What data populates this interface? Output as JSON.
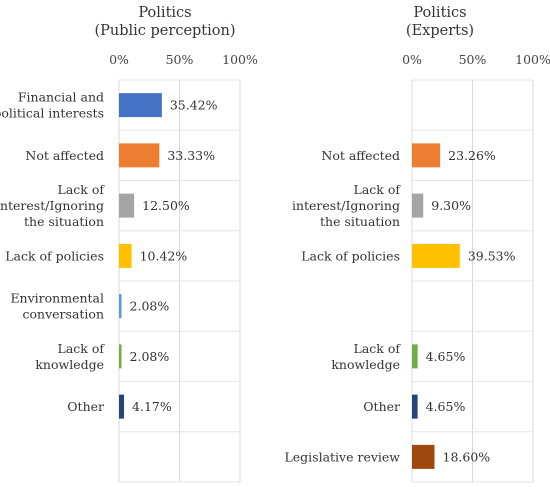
{
  "chart_data": [
    {
      "type": "bar",
      "orientation": "horizontal",
      "title": [
        "Politics",
        "(Public perception)"
      ],
      "xticks": [
        "0%",
        "50%",
        "100%"
      ],
      "xlim": [
        0,
        100
      ],
      "grid": true,
      "rows": [
        {
          "label": [
            "Financial and",
            "political interests"
          ],
          "value": 35.42,
          "value_label": "35.42%",
          "color": "#4472C4"
        },
        {
          "label": [
            "Not affected"
          ],
          "value": 33.33,
          "value_label": "33.33%",
          "color": "#ED7D31"
        },
        {
          "label": [
            "Lack of",
            "interest/Ignoring",
            "the situation"
          ],
          "value": 12.5,
          "value_label": "12.50%",
          "color": "#A5A5A5"
        },
        {
          "label": [
            "Lack of policies"
          ],
          "value": 10.42,
          "value_label": "10.42%",
          "color": "#FFC000"
        },
        {
          "label": [
            "Environmental",
            "conversation"
          ],
          "value": 2.08,
          "value_label": "2.08%",
          "color": "#5B9BD5"
        },
        {
          "label": [
            "Lack of",
            "knowledge"
          ],
          "value": 2.08,
          "value_label": "2.08%",
          "color": "#70AD47"
        },
        {
          "label": [
            "Other"
          ],
          "value": 4.17,
          "value_label": "4.17%",
          "color": "#264478"
        },
        null
      ]
    },
    {
      "type": "bar",
      "orientation": "horizontal",
      "title": [
        "Politics",
        "(Experts)"
      ],
      "xticks": [
        "0%",
        "50%",
        "100%"
      ],
      "xlim": [
        0,
        100
      ],
      "grid": true,
      "rows": [
        null,
        {
          "label": [
            "Not affected"
          ],
          "value": 23.26,
          "value_label": "23.26%",
          "color": "#ED7D31"
        },
        {
          "label": [
            "Lack of",
            "interest/Ignoring",
            "the situation"
          ],
          "value": 9.3,
          "value_label": "9.30%",
          "color": "#A5A5A5"
        },
        {
          "label": [
            "Lack of policies"
          ],
          "value": 39.53,
          "value_label": "39.53%",
          "color": "#FFC000"
        },
        null,
        {
          "label": [
            "Lack of",
            "knowledge"
          ],
          "value": 4.65,
          "value_label": "4.65%",
          "color": "#70AD47"
        },
        {
          "label": [
            "Other"
          ],
          "value": 4.65,
          "value_label": "4.65%",
          "color": "#264478"
        },
        {
          "label": [
            "Legislative review"
          ],
          "value": 18.6,
          "value_label": "18.60%",
          "color": "#9E480E"
        }
      ]
    }
  ]
}
